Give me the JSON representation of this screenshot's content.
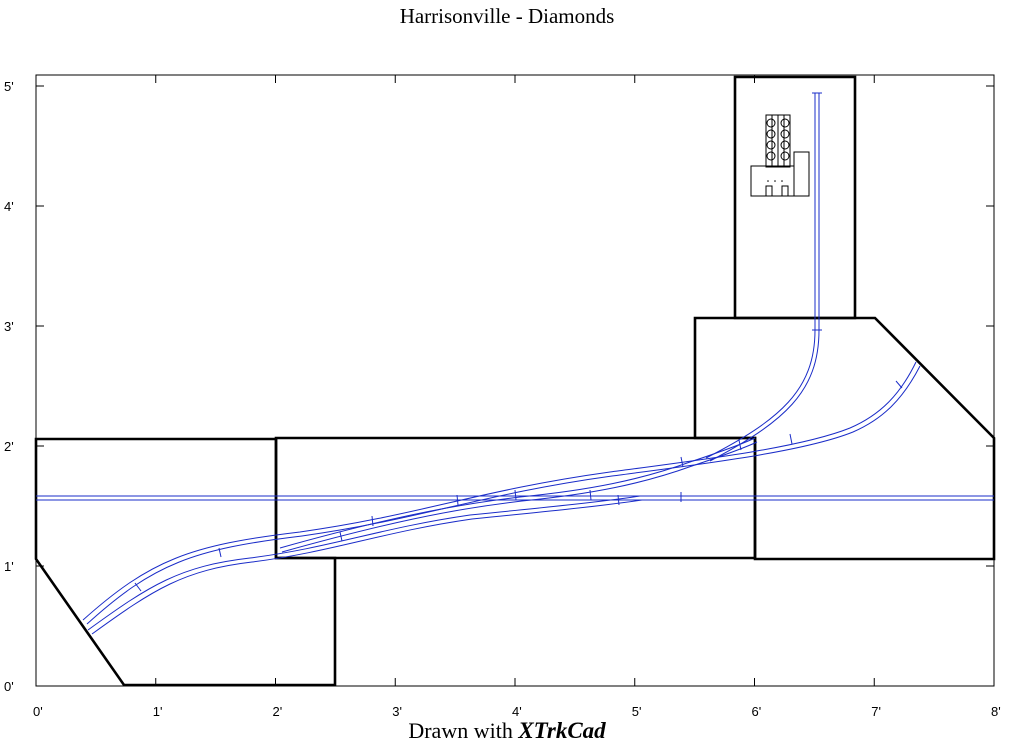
{
  "title": "Harrisonville - Diamonds",
  "footer": {
    "prefix": "Drawn with ",
    "app_name": "XTrkCad"
  },
  "axes": {
    "x_unit": "ft",
    "y_unit": "ft",
    "x_range": [
      0,
      8
    ],
    "y_range": [
      0,
      5
    ],
    "x_ticks": [
      "0'",
      "1'",
      "2'",
      "3'",
      "4'",
      "5'",
      "6'",
      "7'",
      "8'"
    ],
    "y_ticks": [
      "0'",
      "1'",
      "2'",
      "3'",
      "4'",
      "5'"
    ]
  },
  "colors": {
    "track": "#1a2cc8",
    "benchwork": "#000000",
    "background": "#ffffff"
  }
}
